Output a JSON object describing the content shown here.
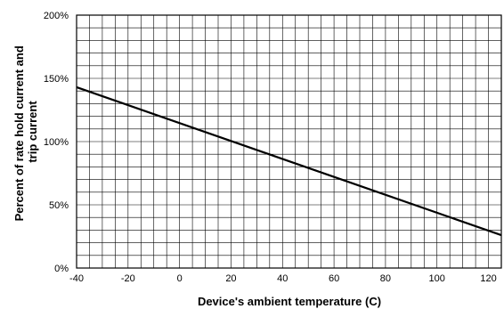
{
  "chart_data": {
    "type": "line",
    "title": "",
    "xlabel": "Device's ambient temperature (C)",
    "ylabel_lines": [
      "Percent of rate hold current and",
      "trip current"
    ],
    "xlim": [
      -40,
      125
    ],
    "ylim": [
      0,
      200
    ],
    "x_ticks": [
      -40,
      -20,
      0,
      20,
      40,
      60,
      80,
      100,
      120
    ],
    "x_tick_labels": [
      "-40",
      "-20",
      "0",
      "20",
      "40",
      "60",
      "80",
      "100",
      "120"
    ],
    "y_ticks": [
      0,
      50,
      100,
      150,
      200
    ],
    "y_tick_labels": [
      "0%",
      "50%",
      "100%",
      "150%",
      "200%"
    ],
    "grid": true,
    "x_minor_step": 5,
    "y_minor_step": 10,
    "series": [
      {
        "name": "",
        "x": [
          -40,
          125
        ],
        "y": [
          143,
          26
        ],
        "color": "#000000"
      }
    ]
  }
}
